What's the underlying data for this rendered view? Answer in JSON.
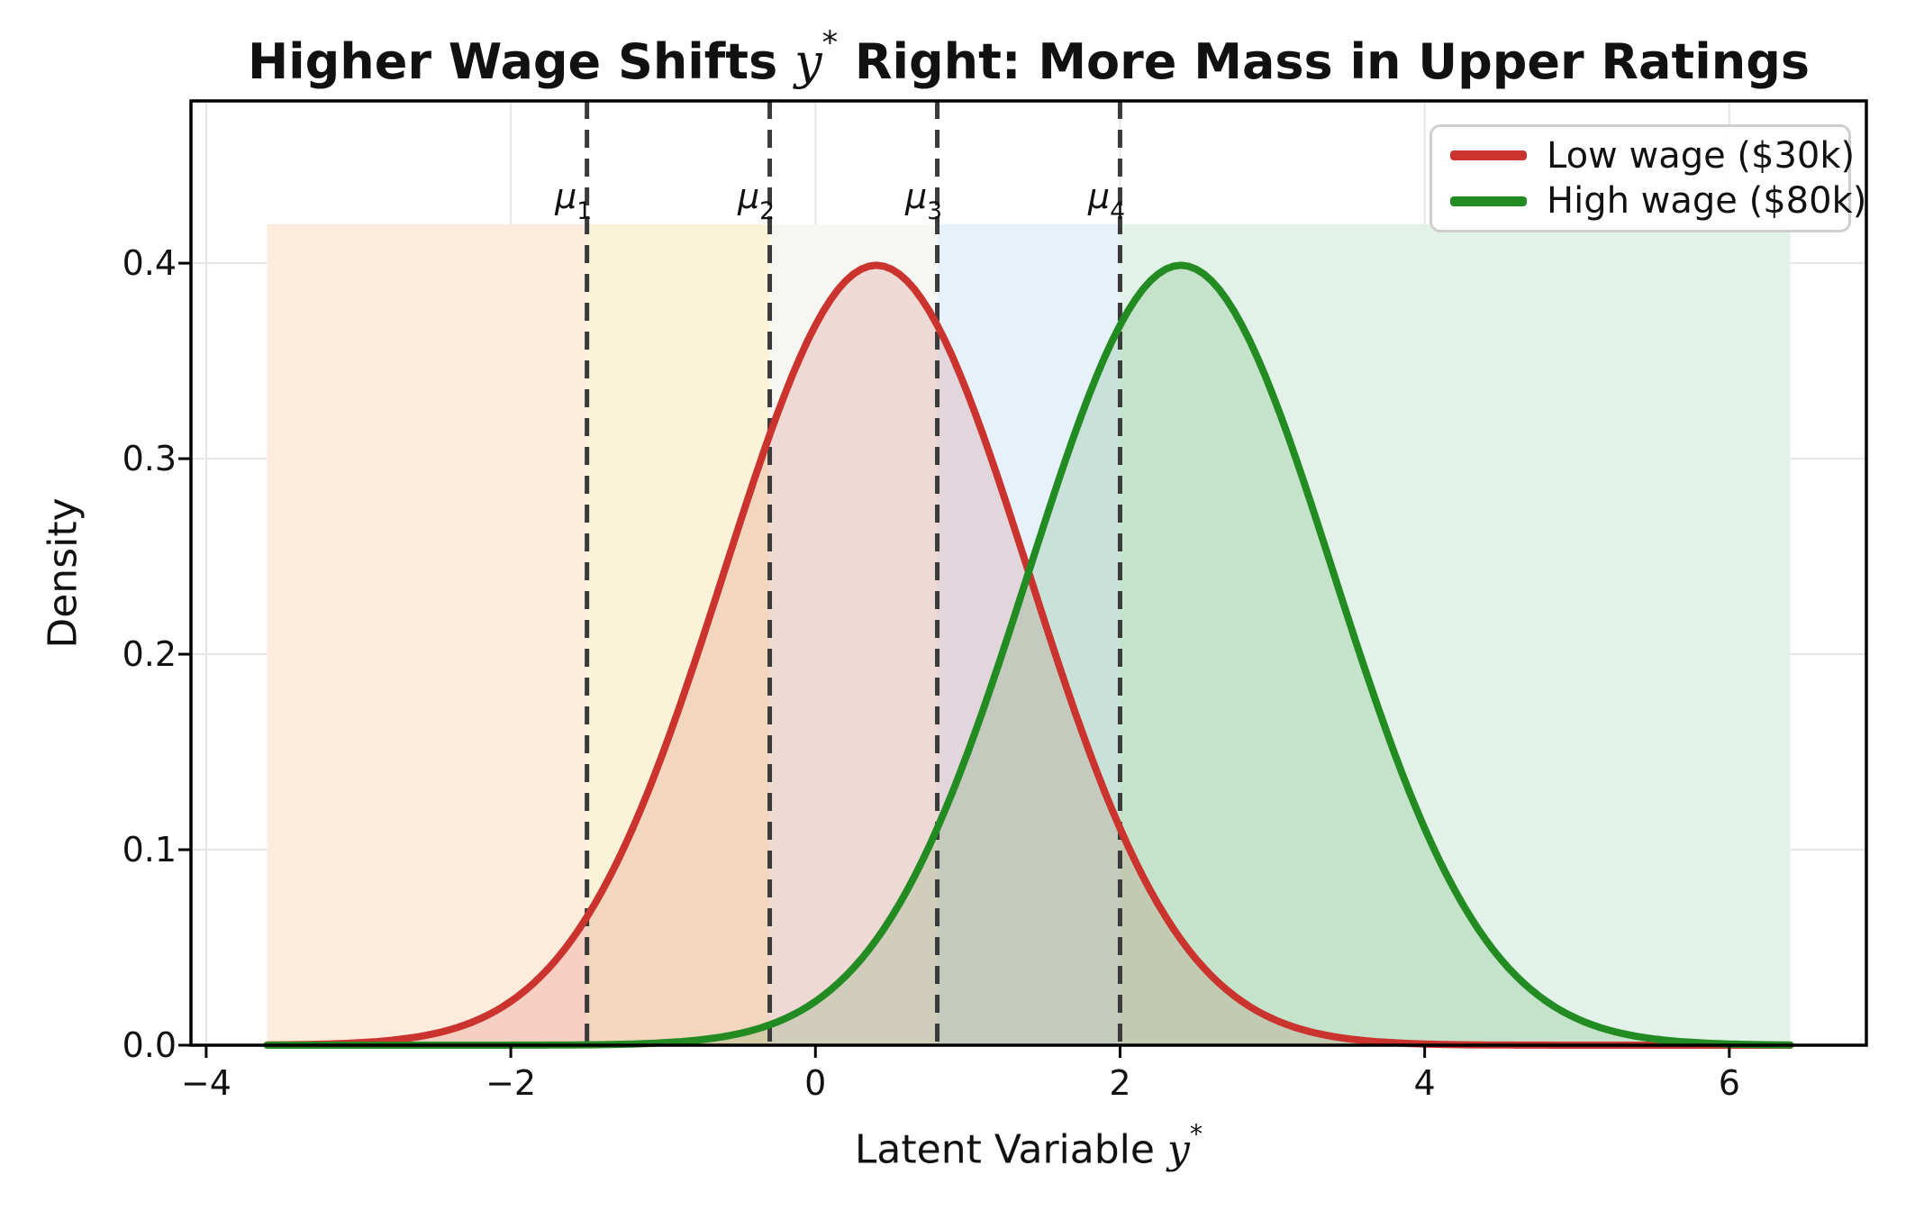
{
  "title": {
    "prefix": "Higher Wage Shifts ",
    "math": "y",
    "sup": "*",
    "suffix": " Right: More Mass in Upper Ratings"
  },
  "axes": {
    "ylabel": "Density",
    "xlabel_prefix": "Latent Variable ",
    "xlabel_math": "y",
    "xlabel_sup": "*"
  },
  "legend": {
    "items": [
      {
        "label": "Low wage ($30k)",
        "color": "#cb332e"
      },
      {
        "label": "High wage ($80k)",
        "color": "#228b22"
      }
    ]
  },
  "chart_data": {
    "type": "line",
    "title": "Higher Wage Shifts y* Right: More Mass in Upper Ratings",
    "xlabel": "Latent Variable y*",
    "ylabel": "Density",
    "xlim": [
      -4.1,
      6.9
    ],
    "ylim": [
      0,
      0.483
    ],
    "grid": true,
    "legend_position": "upper right",
    "x_ticks": [
      {
        "value": -4,
        "label": "−4"
      },
      {
        "value": -2,
        "label": "−2"
      },
      {
        "value": 0,
        "label": "0"
      },
      {
        "value": 2,
        "label": "2"
      },
      {
        "value": 4,
        "label": "4"
      },
      {
        "value": 6,
        "label": "6"
      }
    ],
    "y_ticks": [
      {
        "value": 0.0,
        "label": "0.0"
      },
      {
        "value": 0.1,
        "label": "0.1"
      },
      {
        "value": 0.2,
        "label": "0.2"
      },
      {
        "value": 0.3,
        "label": "0.3"
      },
      {
        "value": 0.4,
        "label": "0.4"
      }
    ],
    "series": [
      {
        "name": "Low wage ($30k)",
        "distribution": "normal",
        "mean": 0.4,
        "sd": 1.0,
        "peak_density": 0.399,
        "x_range": [
          -3.6,
          6.4
        ],
        "color": "#cb332e",
        "fill_opacity": 0.15,
        "line_width": 8
      },
      {
        "name": "High wage ($80k)",
        "distribution": "normal",
        "mean": 2.4,
        "sd": 1.0,
        "peak_density": 0.399,
        "x_range": [
          -3.6,
          6.4
        ],
        "color": "#228b22",
        "fill_opacity": 0.15,
        "line_width": 8
      }
    ],
    "cutpoints": [
      {
        "symbol": "μ",
        "sub": "1",
        "value": -1.5
      },
      {
        "symbol": "μ",
        "sub": "2",
        "value": -0.3
      },
      {
        "symbol": "μ",
        "sub": "3",
        "value": 0.8
      },
      {
        "symbol": "μ",
        "sub": "4",
        "value": 2.0
      }
    ],
    "cutpoint_style": {
      "color": "#3a3a3a",
      "dash": [
        20,
        12
      ],
      "width": 5
    },
    "bands": [
      {
        "range": [
          -3.6,
          -1.5
        ],
        "color": "#fdecdc"
      },
      {
        "range": [
          -1.5,
          -0.3
        ],
        "color": "#faf3d8"
      },
      {
        "range": [
          -0.3,
          0.8
        ],
        "color": "#f6f6f2"
      },
      {
        "range": [
          0.8,
          2.0
        ],
        "color": "#e7f1fa"
      },
      {
        "range": [
          2.0,
          6.4
        ],
        "color": "#e2f2e8"
      }
    ],
    "band_y_range": [
      0,
      0.42
    ],
    "grid_color": "#e5e5e5",
    "spine_color": "#000000"
  }
}
